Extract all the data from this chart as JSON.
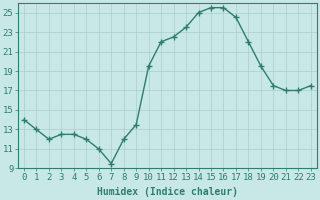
{
  "x": [
    0,
    1,
    2,
    3,
    4,
    5,
    6,
    7,
    8,
    9,
    10,
    11,
    12,
    13,
    14,
    15,
    16,
    17,
    18,
    19,
    20,
    21,
    22,
    23
  ],
  "y": [
    14,
    13,
    12,
    12.5,
    12.5,
    12,
    11,
    9.5,
    12,
    13.5,
    19.5,
    22,
    22.5,
    23.5,
    25,
    25.5,
    25.5,
    24.5,
    22,
    19.5,
    17.5,
    17,
    17,
    17.5
  ],
  "xlabel": "Humidex (Indice chaleur)",
  "ylim": [
    9,
    26
  ],
  "xlim": [
    -0.5,
    23.5
  ],
  "yticks": [
    9,
    11,
    13,
    15,
    17,
    19,
    21,
    23,
    25
  ],
  "xticks": [
    0,
    1,
    2,
    3,
    4,
    5,
    6,
    7,
    8,
    9,
    10,
    11,
    12,
    13,
    14,
    15,
    16,
    17,
    18,
    19,
    20,
    21,
    22,
    23
  ],
  "line_color": "#2e7d6e",
  "marker_color": "#2e7d6e",
  "bg_color": "#c8e8e8",
  "grid_color": "#aacece",
  "axis_color": "#2e7d6e",
  "tick_label_color": "#2e7d6e",
  "xlabel_color": "#2e7d6e",
  "marker": "+",
  "markersize": 4,
  "linewidth": 1.0,
  "xlabel_fontsize": 7,
  "tick_fontsize": 6.5
}
